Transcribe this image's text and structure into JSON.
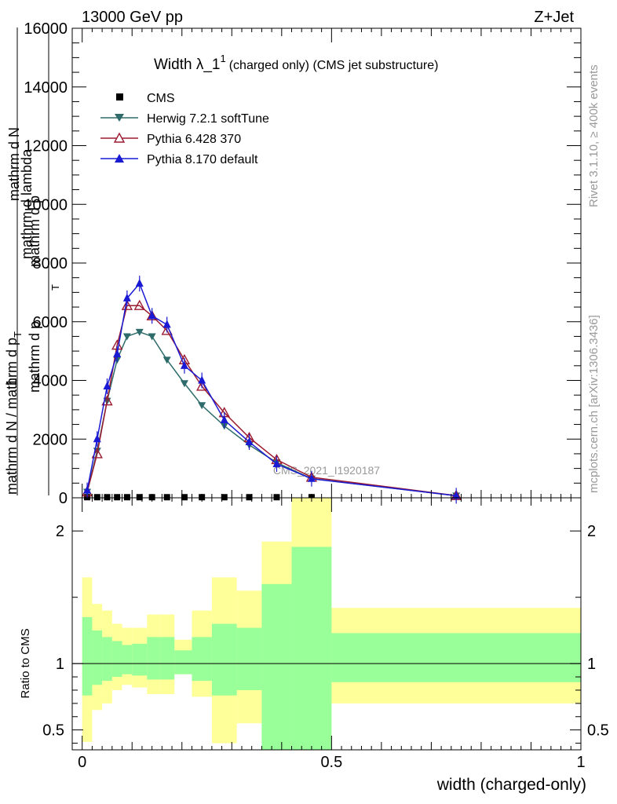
{
  "header": {
    "left": "13000 GeV pp",
    "right": "Z+Jet"
  },
  "side_labels": {
    "rivet": "Rivet 3.1.10, ≥ 400k events",
    "mcplots": "mcplots.cern.ch [arXiv:1306.3436]"
  },
  "watermark": "CMS_2021_I1920187",
  "chart_data": [
    {
      "type": "line",
      "panel": "main",
      "title_main": "Width λ_1",
      "title_sup": "1",
      "title_rest": "(charged only) (CMS jet substructure)",
      "ylabel": {
        "frac_num": "1",
        "frac_den": "mathrm d N / mathrm d p",
        "sub_T": "T",
        "line2": "mathrm d p",
        "line3": "mathrm d N",
        "line3b": "mathrm d lambda",
        "line2b": "mathrm d p"
      },
      "xlim": [
        -0.02,
        1.0
      ],
      "ylim": [
        0,
        16000
      ],
      "y_ticks": [
        0,
        2000,
        4000,
        6000,
        8000,
        10000,
        12000,
        14000,
        16000
      ],
      "y_tick_labels": [
        "0",
        "2000",
        "4000",
        "6000",
        "8000",
        "10000",
        "12000",
        "14000",
        "16000"
      ],
      "legend": [
        "CMS",
        "Herwig 7.2.1 softTune",
        "Pythia 6.428 370",
        "Pythia 8.170 default"
      ],
      "series": [
        {
          "name": "CMS",
          "color": "#000000",
          "marker": "square",
          "x": [
            0.01,
            0.03,
            0.05,
            0.07,
            0.09,
            0.115,
            0.14,
            0.17,
            0.205,
            0.24,
            0.285,
            0.335,
            0.39,
            0.46
          ],
          "y": [
            20,
            20,
            20,
            20,
            20,
            20,
            20,
            20,
            20,
            20,
            20,
            20,
            20,
            20
          ]
        },
        {
          "name": "Herwig 7.2.1 softTune",
          "color": "#2e6b6b",
          "marker": "triangle-down",
          "x": [
            0.01,
            0.03,
            0.05,
            0.07,
            0.09,
            0.115,
            0.14,
            0.17,
            0.205,
            0.24,
            0.285,
            0.335,
            0.39,
            0.46,
            0.75
          ],
          "y": [
            200,
            1600,
            3300,
            4700,
            5500,
            5650,
            5500,
            4700,
            3900,
            3150,
            2450,
            1800,
            1200,
            650,
            70
          ]
        },
        {
          "name": "Pythia 6.428 370",
          "color": "#9b1b30",
          "marker": "triangle-up-open",
          "x": [
            0.01,
            0.03,
            0.05,
            0.07,
            0.09,
            0.115,
            0.14,
            0.17,
            0.205,
            0.24,
            0.285,
            0.335,
            0.39,
            0.46,
            0.75
          ],
          "y": [
            200,
            1500,
            3300,
            5200,
            6550,
            6550,
            6200,
            5700,
            4700,
            3800,
            2900,
            2050,
            1300,
            700,
            75
          ]
        },
        {
          "name": "Pythia 8.170 default",
          "color": "#1a1ad4",
          "marker": "triangle-up",
          "x": [
            0.01,
            0.03,
            0.05,
            0.07,
            0.09,
            0.115,
            0.14,
            0.17,
            0.205,
            0.24,
            0.285,
            0.335,
            0.39,
            0.46,
            0.75
          ],
          "y": [
            250,
            2000,
            3800,
            4900,
            6800,
            7300,
            6200,
            5900,
            4500,
            4000,
            2650,
            1900,
            1150,
            650,
            70
          ]
        }
      ]
    },
    {
      "type": "area",
      "panel": "ratio",
      "ylabel": "Ratio to CMS",
      "xlabel": "width (charged-only)",
      "xlim": [
        -0.02,
        1.0
      ],
      "ylim": [
        0.35,
        2.25
      ],
      "y_ticks": [
        0.5,
        1,
        2
      ],
      "y_tick_labels": [
        "0.5",
        "1",
        "2"
      ],
      "x_ticks": [
        0,
        0.5,
        1
      ],
      "x_tick_labels": [
        "0",
        "0.5",
        "1"
      ],
      "reference": 1.0,
      "bands": {
        "edges": [
          0.0,
          0.02,
          0.04,
          0.06,
          0.08,
          0.1,
          0.13,
          0.155,
          0.185,
          0.22,
          0.26,
          0.31,
          0.36,
          0.42,
          0.5,
          1.0
        ],
        "green": [
          [
            0.76,
            1.35
          ],
          [
            0.84,
            1.25
          ],
          [
            0.87,
            1.2
          ],
          [
            0.9,
            1.17
          ],
          [
            0.92,
            1.14
          ],
          [
            0.91,
            1.15
          ],
          [
            0.88,
            1.2
          ],
          [
            0.88,
            1.2
          ],
          [
            0.92,
            1.1
          ],
          [
            0.87,
            1.2
          ],
          [
            0.76,
            1.3
          ],
          [
            0.8,
            1.27
          ],
          [
            0.35,
            1.6
          ],
          [
            0.35,
            1.88
          ],
          [
            0.86,
            1.23
          ]
        ],
        "yellow": [
          [
            0.41,
            1.65
          ],
          [
            0.65,
            1.45
          ],
          [
            0.7,
            1.4
          ],
          [
            0.8,
            1.3
          ],
          [
            0.84,
            1.27
          ],
          [
            0.82,
            1.27
          ],
          [
            0.77,
            1.37
          ],
          [
            0.77,
            1.37
          ],
          [
            0.92,
            1.18
          ],
          [
            0.75,
            1.4
          ],
          [
            0.4,
            1.65
          ],
          [
            0.55,
            1.55
          ],
          [
            0.42,
            1.92
          ],
          [
            0.35,
            2.25
          ],
          [
            0.7,
            1.42
          ]
        ]
      }
    }
  ]
}
